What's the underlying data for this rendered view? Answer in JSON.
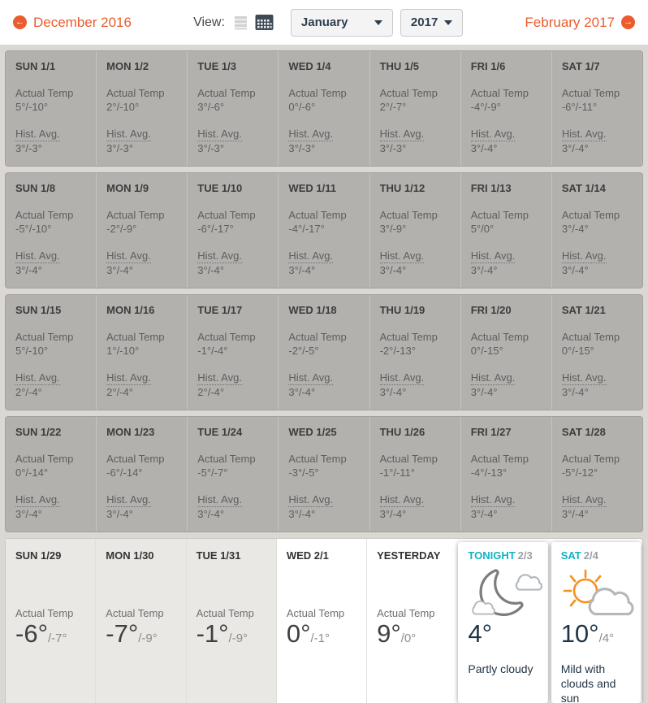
{
  "toolbar": {
    "prev_label": "December 2016",
    "next_label": "February 2017",
    "view_label": "View:",
    "month_dropdown": "January",
    "year_dropdown": "2017"
  },
  "labels": {
    "actual_temp": "Actual Temp",
    "hist_avg": "Hist. Avg."
  },
  "weeks": [
    {
      "days": [
        {
          "day": "SUN 1/1",
          "actual": "5°/-10°",
          "hist": "3°/-3°"
        },
        {
          "day": "MON 1/2",
          "actual": "2°/-10°",
          "hist": "3°/-3°"
        },
        {
          "day": "TUE 1/3",
          "actual": "3°/-6°",
          "hist": "3°/-3°"
        },
        {
          "day": "WED 1/4",
          "actual": "0°/-6°",
          "hist": "3°/-3°"
        },
        {
          "day": "THU 1/5",
          "actual": "2°/-7°",
          "hist": "3°/-3°"
        },
        {
          "day": "FRI 1/6",
          "actual": "-4°/-9°",
          "hist": "3°/-4°"
        },
        {
          "day": "SAT 1/7",
          "actual": "-6°/-11°",
          "hist": "3°/-4°"
        }
      ]
    },
    {
      "days": [
        {
          "day": "SUN 1/8",
          "actual": "-5°/-10°",
          "hist": "3°/-4°"
        },
        {
          "day": "MON 1/9",
          "actual": "-2°/-9°",
          "hist": "3°/-4°"
        },
        {
          "day": "TUE 1/10",
          "actual": "-6°/-17°",
          "hist": "3°/-4°"
        },
        {
          "day": "WED 1/11",
          "actual": "-4°/-17°",
          "hist": "3°/-4°"
        },
        {
          "day": "THU 1/12",
          "actual": "3°/-9°",
          "hist": "3°/-4°"
        },
        {
          "day": "FRI 1/13",
          "actual": "5°/0°",
          "hist": "3°/-4°"
        },
        {
          "day": "SAT 1/14",
          "actual": "3°/-4°",
          "hist": "3°/-4°"
        }
      ]
    },
    {
      "days": [
        {
          "day": "SUN 1/15",
          "actual": "5°/-10°",
          "hist": "2°/-4°"
        },
        {
          "day": "MON 1/16",
          "actual": "1°/-10°",
          "hist": "2°/-4°"
        },
        {
          "day": "TUE 1/17",
          "actual": "-1°/-4°",
          "hist": "2°/-4°"
        },
        {
          "day": "WED 1/18",
          "actual": "-2°/-5°",
          "hist": "3°/-4°"
        },
        {
          "day": "THU 1/19",
          "actual": "-2°/-13°",
          "hist": "3°/-4°"
        },
        {
          "day": "FRI 1/20",
          "actual": "0°/-15°",
          "hist": "3°/-4°"
        },
        {
          "day": "SAT 1/21",
          "actual": "0°/-15°",
          "hist": "3°/-4°"
        }
      ]
    },
    {
      "days": [
        {
          "day": "SUN 1/22",
          "actual": "0°/-14°",
          "hist": "3°/-4°"
        },
        {
          "day": "MON 1/23",
          "actual": "-6°/-14°",
          "hist": "3°/-4°"
        },
        {
          "day": "TUE 1/24",
          "actual": "-5°/-7°",
          "hist": "3°/-4°"
        },
        {
          "day": "WED 1/25",
          "actual": "-3°/-5°",
          "hist": "3°/-4°"
        },
        {
          "day": "THU 1/26",
          "actual": "-1°/-11°",
          "hist": "3°/-4°"
        },
        {
          "day": "FRI 1/27",
          "actual": "-4°/-13°",
          "hist": "3°/-4°"
        },
        {
          "day": "SAT 1/28",
          "actual": "-5°/-12°",
          "hist": "3°/-4°"
        }
      ]
    }
  ],
  "final_week": {
    "days": [
      {
        "name": "SUN 1/29",
        "kind": "past",
        "hi": "-6°",
        "lo": "/-7°"
      },
      {
        "name": "MON 1/30",
        "kind": "past",
        "hi": "-7°",
        "lo": "/-9°"
      },
      {
        "name": "TUE 1/31",
        "kind": "past",
        "hi": "-1°",
        "lo": "/-9°"
      },
      {
        "name": "WED 2/1",
        "kind": "plain",
        "hi": "0°",
        "lo": "/-1°"
      },
      {
        "name": "YESTERDAY",
        "kind": "plain",
        "hi": "9°",
        "lo": "/0°"
      },
      {
        "name": "TONIGHT",
        "date": "2/3",
        "kind": "forecast",
        "icon": "moon-clouds-icon",
        "hi": "4°",
        "lo": "",
        "desc": "Partly cloudy"
      },
      {
        "name": "SAT",
        "date": "2/4",
        "kind": "forecast",
        "icon": "sun-cloud-icon",
        "hi": "10°",
        "lo": "/4°",
        "desc": "Mild with clouds and sun"
      }
    ]
  },
  "colors": {
    "accent_orange": "#eb5b2d",
    "accent_teal": "#10b2c4",
    "dropdown_text": "#2d3e50",
    "past_week_bg": "#b3b1ae",
    "recent_past_bg": "#eae8e5"
  }
}
